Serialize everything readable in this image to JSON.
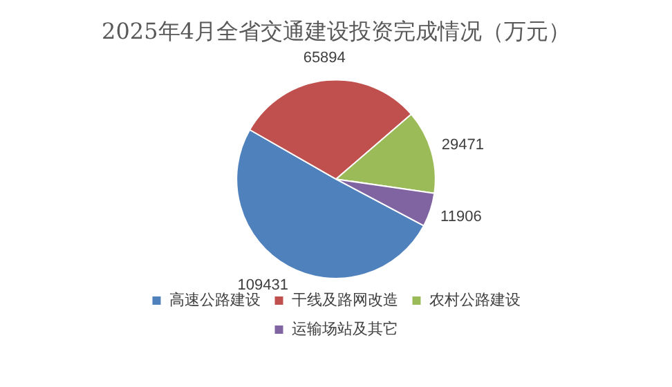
{
  "chart_data": {
    "type": "pie",
    "title": "2025年4月全省交通建设投资完成情况（万元）",
    "categories": [
      "高速公路建设",
      "干线及路网改造",
      "农村公路建设",
      "运输场站及其它"
    ],
    "values": [
      109431,
      65894,
      29471,
      11906
    ],
    "colors": [
      "#4f81bd",
      "#c0504d",
      "#9bbb59",
      "#8064a2"
    ],
    "data_labels": true,
    "legend": "bottom"
  }
}
